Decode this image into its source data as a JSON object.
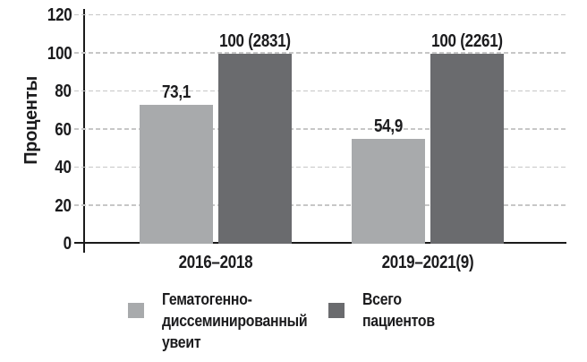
{
  "chart_data": {
    "type": "bar",
    "title": "",
    "xlabel": "",
    "ylabel": "Проценты",
    "categories": [
      "2016–2018",
      "2019–2021(9)"
    ],
    "yticks": [
      0,
      20,
      40,
      60,
      80,
      100,
      120
    ],
    "ylim": [
      0,
      120
    ],
    "grid": "horizontal-dashed",
    "legend_position": "bottom",
    "series": [
      {
        "name": "Гематогенно-диссеминированный увеит",
        "legend_label": "Гематогенно-\nдиссеминированный\nувеит",
        "values": [
          73.1,
          54.9
        ],
        "bar_labels": [
          "73,1",
          "54,9"
        ],
        "color": "#a8aaac"
      },
      {
        "name": "Всего пациентов",
        "legend_label": "Всего\nпациентов",
        "values": [
          100,
          100
        ],
        "bar_labels": [
          "100 (2831)",
          "100 (2261)"
        ],
        "color": "#6a6b6e"
      }
    ]
  },
  "colors": {
    "background": "#ffffff",
    "axis": "#1a1a1a",
    "gridline": "#c7c7c7",
    "text": "#1b1b1d"
  }
}
